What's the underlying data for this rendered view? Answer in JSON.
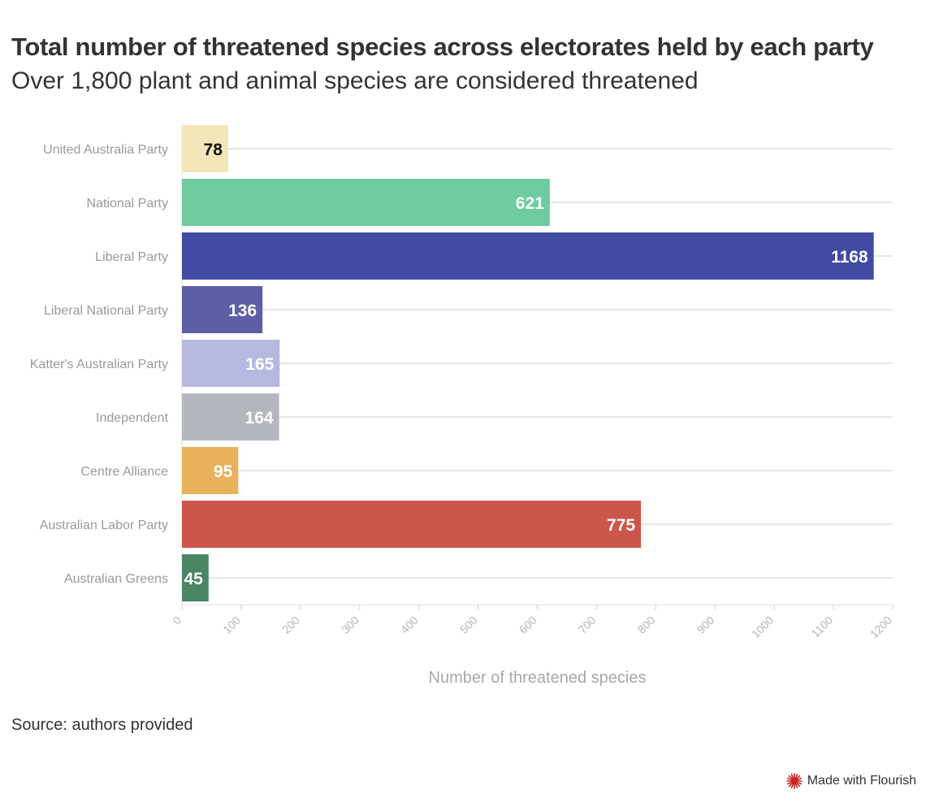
{
  "header": {
    "title": "Total number of threatened species across electorates held by each party",
    "subtitle": "Over 1,800 plant and animal species are considered threatened"
  },
  "footer": {
    "source": "Source: authors provided",
    "credit": "Made with Flourish",
    "credit_icon": "flourish-logo-icon"
  },
  "chart_data": {
    "type": "bar",
    "orientation": "horizontal",
    "categories": [
      "United Australia Party",
      "National Party",
      "Liberal Party",
      "Liberal National Party",
      "Katter's Australian Party",
      "Independent",
      "Centre Alliance",
      "Australian Labor Party",
      "Australian Greens"
    ],
    "values": [
      78,
      621,
      1168,
      136,
      165,
      164,
      95,
      775,
      45
    ],
    "colors": [
      "#f3e6b8",
      "#6ecc9f",
      "#414aa3",
      "#5b5fa6",
      "#b6b9df",
      "#b5b7bf",
      "#e8b15a",
      "#cc564b",
      "#4a8565"
    ],
    "label_colors": [
      "#111111",
      "#ffffff",
      "#ffffff",
      "#ffffff",
      "#ffffff",
      "#ffffff",
      "#ffffff",
      "#ffffff",
      "#ffffff"
    ],
    "xlabel": "Number of threatened species",
    "xlim": [
      0,
      1200
    ],
    "xticks": [
      0,
      100,
      200,
      300,
      400,
      500,
      600,
      700,
      800,
      900,
      1000,
      1100,
      1200
    ],
    "grid": true,
    "legend": "none"
  }
}
